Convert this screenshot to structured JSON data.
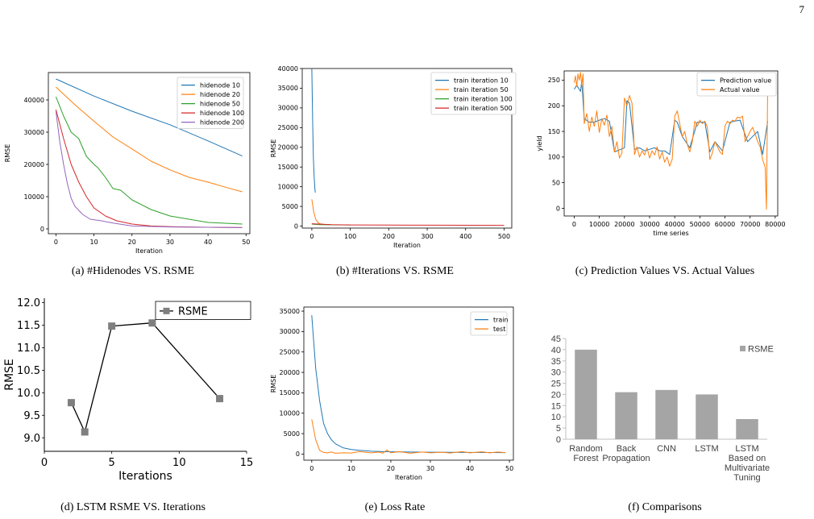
{
  "page_number": "7",
  "captions": [
    "(a) #Hidenodes VS. RSME",
    "(b) #Iterations VS. RSME",
    "(c) Prediction Values VS. Actual Values",
    "(d) LSTM RSME VS. Iterations",
    "(e) Loss Rate",
    "(f) Comparisons"
  ],
  "colors": {
    "blue": "#1f77b4",
    "orange": "#ff7f0e",
    "green": "#2ca02c",
    "red": "#d62728",
    "purple": "#9467bd",
    "gray": "#7f7f7f",
    "bar": "#a5a5a5"
  },
  "chart_data": [
    {
      "type": "line",
      "xlabel": "Iteration",
      "ylabel": "RMSE",
      "xlim": [
        -2,
        51
      ],
      "ylim": [
        -1500,
        48500
      ],
      "xticks": [
        0,
        10,
        20,
        30,
        40,
        50
      ],
      "yticks": [
        0,
        10000,
        20000,
        30000,
        40000
      ],
      "legend": "top-right",
      "grid": false,
      "series": [
        {
          "name": "hidenode 10",
          "color": "#1f77b4",
          "x": [
            0,
            10,
            20,
            30,
            40,
            49
          ],
          "y": [
            46500,
            41200,
            36500,
            32300,
            27300,
            22600
          ]
        },
        {
          "name": "hidenode 20",
          "color": "#ff7f0e",
          "x": [
            0,
            5,
            10,
            15,
            20,
            25,
            30,
            35,
            40,
            45,
            49
          ],
          "y": [
            44000,
            38500,
            33400,
            28500,
            24800,
            21000,
            18300,
            16000,
            14500,
            12800,
            11500
          ]
        },
        {
          "name": "hidenode 50",
          "color": "#2ca02c",
          "x": [
            0,
            2,
            4,
            6,
            8,
            10,
            11,
            13,
            15,
            17,
            20,
            25,
            30,
            40,
            49
          ],
          "y": [
            41000,
            35000,
            30000,
            28000,
            22500,
            20000,
            19000,
            16000,
            12500,
            12000,
            9000,
            6000,
            4000,
            2000,
            1500
          ]
        },
        {
          "name": "hidenode 100",
          "color": "#d62728",
          "x": [
            0,
            2,
            4,
            6,
            8,
            10,
            13,
            16,
            20,
            25,
            30,
            40,
            49
          ],
          "y": [
            37000,
            28000,
            20000,
            14500,
            10000,
            6500,
            4000,
            2500,
            1500,
            900,
            700,
            500,
            400
          ]
        },
        {
          "name": "hidenode 200",
          "color": "#9467bd",
          "x": [
            0,
            1,
            2,
            3,
            4,
            5,
            7,
            9,
            12,
            15,
            20,
            30,
            40,
            49
          ],
          "y": [
            36500,
            27000,
            20000,
            14000,
            9500,
            7000,
            4500,
            3000,
            2500,
            1800,
            900,
            600,
            500,
            400
          ]
        }
      ]
    },
    {
      "type": "line",
      "xlabel": "Iteration",
      "ylabel": "RMSE",
      "xlim": [
        -25,
        520
      ],
      "ylim": [
        -500,
        40000
      ],
      "xticks": [
        0,
        100,
        200,
        300,
        400,
        500
      ],
      "yticks": [
        0,
        5000,
        10000,
        15000,
        20000,
        25000,
        30000,
        35000,
        40000
      ],
      "legend": "top-right",
      "grid": false,
      "series": [
        {
          "name": "train iteration 10",
          "color": "#1f77b4",
          "x": [
            0,
            2,
            4,
            6,
            8,
            9
          ],
          "y": [
            40000,
            27000,
            17500,
            12500,
            9500,
            8500
          ]
        },
        {
          "name": "train iteration 50",
          "color": "#ff7f0e",
          "x": [
            0,
            5,
            10,
            15,
            20,
            30,
            40,
            49
          ],
          "y": [
            6800,
            3500,
            1800,
            1000,
            600,
            450,
            400,
            400
          ]
        },
        {
          "name": "train iteration 100",
          "color": "#2ca02c",
          "x": [
            0,
            20,
            60,
            99
          ],
          "y": [
            500,
            350,
            320,
            300
          ]
        },
        {
          "name": "train iteration 500",
          "color": "#d62728",
          "x": [
            0,
            50,
            100,
            200,
            300,
            400,
            500
          ],
          "y": [
            600,
            350,
            300,
            250,
            230,
            220,
            200
          ]
        }
      ]
    },
    {
      "type": "line",
      "xlabel": "time series",
      "ylabel": "yield",
      "xlim": [
        -4000,
        81000
      ],
      "ylim": [
        -15,
        268
      ],
      "xticks": [
        0,
        10000,
        20000,
        30000,
        40000,
        50000,
        60000,
        70000,
        80000
      ],
      "yticks": [
        0,
        50,
        100,
        150,
        200,
        250
      ],
      "legend": "top-right",
      "grid": false,
      "series": [
        {
          "name": "Prediction value",
          "color": "#1f77b4",
          "x": [
            0,
            1000,
            2500,
            3000,
            4000,
            6000,
            8000,
            10000,
            12000,
            14000,
            16000,
            20000,
            21000,
            22000,
            24000,
            26000,
            28000,
            30000,
            32000,
            34000,
            36000,
            38000,
            40000,
            41000,
            43000,
            46000,
            49000,
            52000,
            54000,
            56000,
            59000,
            62000,
            64000,
            66000,
            69000,
            72000,
            73000,
            75000,
            77000
          ],
          "y": [
            232,
            240,
            228,
            248,
            175,
            168,
            168,
            172,
            175,
            170,
            110,
            118,
            210,
            205,
            115,
            118,
            112,
            115,
            118,
            112,
            112,
            105,
            172,
            168,
            140,
            118,
            168,
            168,
            110,
            130,
            112,
            168,
            170,
            172,
            130,
            145,
            150,
            105,
            170
          ]
        },
        {
          "name": "Actual value",
          "color": "#ff7f0e",
          "x": [
            0,
            500,
            1000,
            1500,
            2000,
            2500,
            3000,
            3500,
            4000,
            5000,
            6000,
            7000,
            8000,
            9000,
            10000,
            11000,
            12000,
            13000,
            14000,
            15000,
            16000,
            17000,
            18000,
            19000,
            20000,
            21000,
            22000,
            23000,
            24000,
            25000,
            26000,
            27000,
            28000,
            29000,
            30000,
            31000,
            32000,
            33000,
            34000,
            35000,
            36000,
            37000,
            38000,
            39000,
            40000,
            41000,
            42000,
            43000,
            44000,
            45000,
            46000,
            47000,
            48000,
            49000,
            50000,
            51000,
            52000,
            53000,
            54000,
            55000,
            56000,
            57000,
            58000,
            59000,
            60000,
            61000,
            62000,
            63000,
            64000,
            65000,
            66000,
            67000,
            68000,
            69000,
            70000,
            71000,
            72000,
            73000,
            74000,
            75000,
            76000,
            76500,
            77000
          ],
          "y": [
            245,
            258,
            238,
            262,
            250,
            265,
            240,
            262,
            165,
            185,
            150,
            178,
            160,
            190,
            148,
            175,
            162,
            182,
            140,
            160,
            110,
            130,
            98,
            108,
            215,
            200,
            220,
            205,
            105,
            120,
            100,
            112,
            104,
            118,
            98,
            112,
            104,
            120,
            96,
            110,
            90,
            100,
            82,
            96,
            180,
            190,
            165,
            140,
            150,
            125,
            110,
            130,
            170,
            160,
            172,
            165,
            170,
            158,
            95,
            108,
            130,
            120,
            110,
            105,
            160,
            170,
            165,
            172,
            170,
            178,
            176,
            180,
            130,
            140,
            150,
            158,
            145,
            130,
            120,
            95,
            80,
            -2,
            232
          ]
        }
      ]
    },
    {
      "type": "line",
      "xlabel": "Iterations",
      "ylabel": "RMSE",
      "xlim": [
        0,
        15
      ],
      "ylim": [
        8.7,
        12.1
      ],
      "xticks": [
        0,
        5,
        10,
        15
      ],
      "yticks": [
        9.0,
        9.5,
        10.0,
        10.5,
        11.0,
        11.5,
        12.0
      ],
      "legend": "top-right",
      "grid": false,
      "series": [
        {
          "name": "RSME",
          "color": "#000000",
          "marker_color": "#7f7f7f",
          "x": [
            2,
            3,
            5,
            8,
            13
          ],
          "y": [
            9.78,
            9.13,
            11.48,
            11.55,
            9.87
          ]
        }
      ]
    },
    {
      "type": "line",
      "xlabel": "Iteration",
      "ylabel": "RMSE",
      "xlim": [
        -2,
        51
      ],
      "ylim": [
        -1500,
        36000
      ],
      "xticks": [
        0,
        10,
        20,
        30,
        40,
        50
      ],
      "yticks": [
        0,
        5000,
        10000,
        15000,
        20000,
        25000,
        30000,
        35000
      ],
      "legend": "top-right",
      "grid": false,
      "series": [
        {
          "name": "train",
          "color": "#1f77b4",
          "x": [
            0,
            1,
            2,
            3,
            4,
            5,
            6,
            7,
            8,
            10,
            12,
            15,
            18,
            20,
            25,
            30,
            40,
            49
          ],
          "y": [
            34000,
            21000,
            13000,
            7500,
            5000,
            3500,
            2500,
            2000,
            1500,
            1100,
            900,
            700,
            600,
            550,
            500,
            450,
            400,
            350
          ]
        },
        {
          "name": "test",
          "color": "#ff7f0e",
          "x": [
            0,
            1,
            2,
            3,
            4,
            5,
            6,
            8,
            10,
            12,
            15,
            17,
            18,
            19,
            20,
            22,
            25,
            28,
            30,
            33,
            35,
            38,
            40,
            43,
            45,
            47,
            49
          ],
          "y": [
            8500,
            3500,
            900,
            400,
            300,
            500,
            200,
            300,
            250,
            600,
            300,
            500,
            200,
            1000,
            300,
            600,
            200,
            500,
            300,
            450,
            250,
            600,
            300,
            550,
            300,
            500,
            350
          ]
        }
      ]
    },
    {
      "type": "bar",
      "xlabel": "",
      "ylabel": "",
      "ylim": [
        0,
        45
      ],
      "yticks": [
        0,
        5,
        10,
        15,
        20,
        25,
        30,
        35,
        40,
        45
      ],
      "legend": "top-right",
      "grid": false,
      "categories": [
        [
          "Random",
          "Forest"
        ],
        [
          "Back",
          "Propagation"
        ],
        [
          "CNN"
        ],
        [
          "LSTM"
        ],
        [
          "LSTM",
          "Based on",
          "Multivariate",
          "Tuning"
        ]
      ],
      "series": [
        {
          "name": "RSME",
          "color": "#a5a5a5",
          "values": [
            40,
            21,
            22,
            20,
            9
          ]
        }
      ]
    }
  ]
}
